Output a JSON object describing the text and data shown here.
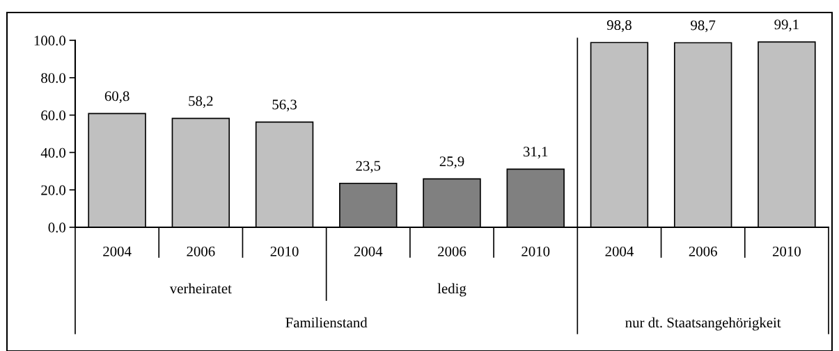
{
  "chart_data": {
    "type": "bar",
    "categories": [
      "2004",
      "2006",
      "2010",
      "2004",
      "2006",
      "2010",
      "2004",
      "2006",
      "2010"
    ],
    "values": [
      60.8,
      58.2,
      56.3,
      23.5,
      25.9,
      31.1,
      98.8,
      98.7,
      99.1
    ],
    "colors": [
      "#c0c0c0",
      "#c0c0c0",
      "#c0c0c0",
      "#808080",
      "#808080",
      "#808080",
      "#c0c0c0",
      "#c0c0c0",
      "#c0c0c0"
    ],
    "value_labels": [
      "60,8",
      "58,2",
      "56,3",
      "23,5",
      "25,9",
      "31,1",
      "98,8",
      "98,7",
      "99,1"
    ],
    "ylim": [
      0,
      100
    ],
    "yticks": [
      {
        "value": 0,
        "label": "0.0"
      },
      {
        "value": 20,
        "label": "20.0"
      },
      {
        "value": 40,
        "label": "40.0"
      },
      {
        "value": 60,
        "label": "60.0"
      },
      {
        "value": 80,
        "label": "80.0"
      },
      {
        "value": 100,
        "label": "100.0"
      }
    ],
    "annotations": [
      "verheiratet",
      "ledig",
      "Familienstand",
      "nur dt. Staatsangehörigkeit"
    ],
    "grid": false,
    "legend": false
  }
}
